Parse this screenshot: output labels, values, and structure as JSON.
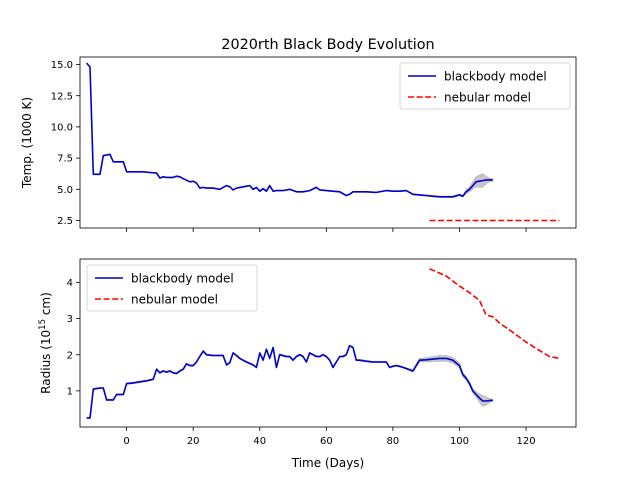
{
  "chart_data": [
    {
      "type": "line",
      "title": "2020rth Black Body Evolution",
      "xlabel": "",
      "ylabel": "Temp. (1000 K)",
      "xlim": [
        -14,
        135
      ],
      "ylim": [
        1.9,
        15.6
      ],
      "xticks": [
        0,
        20,
        40,
        60,
        80,
        100,
        120
      ],
      "yticks": [
        2.5,
        5.0,
        7.5,
        10.0,
        12.5,
        15.0
      ],
      "ytick_labels": [
        "2.5",
        "5.0",
        "7.5",
        "10.0",
        "12.5",
        "15.0"
      ],
      "legend_position": "upper right",
      "series": [
        {
          "name": "blackbody model",
          "color": "#0000cc",
          "style": "solid",
          "uncertainty_color": "#999999",
          "x": [
            -12,
            -11,
            -10,
            -8,
            -7,
            -5,
            -4,
            -3,
            -1,
            0,
            1,
            3,
            5,
            7,
            9,
            10,
            11,
            12,
            14,
            15,
            16,
            17,
            19,
            20,
            21,
            22,
            23,
            24,
            26,
            28,
            30,
            31,
            32,
            33,
            35,
            37,
            38,
            39,
            40,
            41,
            42,
            43,
            44,
            45,
            47,
            49,
            51,
            53,
            55,
            57,
            58,
            60,
            62,
            64,
            66,
            67,
            68,
            70,
            72,
            75,
            78,
            80,
            81,
            82,
            84,
            86,
            88,
            90,
            92,
            94,
            96,
            98,
            100,
            101,
            102,
            103,
            104,
            105,
            106,
            107,
            108,
            109,
            110
          ],
          "y": [
            15.1,
            14.8,
            6.2,
            6.2,
            7.7,
            7.8,
            7.2,
            7.2,
            7.2,
            6.4,
            6.4,
            6.4,
            6.4,
            6.35,
            6.3,
            5.9,
            6.0,
            5.95,
            5.95,
            6.05,
            6.0,
            5.85,
            5.6,
            5.65,
            5.5,
            5.1,
            5.15,
            5.1,
            5.1,
            5.0,
            5.3,
            5.2,
            4.95,
            5.1,
            5.2,
            5.3,
            5.0,
            5.15,
            4.85,
            5.05,
            4.85,
            5.3,
            4.85,
            4.9,
            4.9,
            5.0,
            4.8,
            4.8,
            4.9,
            5.15,
            4.95,
            4.9,
            4.85,
            4.8,
            4.5,
            4.6,
            4.8,
            4.8,
            4.8,
            4.75,
            4.9,
            4.85,
            4.85,
            4.85,
            4.9,
            4.6,
            4.55,
            4.5,
            4.45,
            4.4,
            4.4,
            4.4,
            4.55,
            4.45,
            4.8,
            5.0,
            5.3,
            5.6,
            5.65,
            5.7,
            5.75,
            5.75,
            5.75
          ],
          "err": [
            0.02,
            0.02,
            0.02,
            0.02,
            0.05,
            0.05,
            0.04,
            0.04,
            0.04,
            0.03,
            0.03,
            0.03,
            0.03,
            0.03,
            0.03,
            0.03,
            0.03,
            0.03,
            0.03,
            0.03,
            0.03,
            0.03,
            0.03,
            0.03,
            0.03,
            0.03,
            0.03,
            0.03,
            0.03,
            0.03,
            0.03,
            0.03,
            0.03,
            0.03,
            0.03,
            0.03,
            0.03,
            0.03,
            0.03,
            0.03,
            0.03,
            0.03,
            0.03,
            0.03,
            0.03,
            0.03,
            0.03,
            0.03,
            0.03,
            0.03,
            0.03,
            0.03,
            0.03,
            0.03,
            0.03,
            0.03,
            0.03,
            0.03,
            0.03,
            0.03,
            0.03,
            0.03,
            0.03,
            0.03,
            0.03,
            0.05,
            0.05,
            0.05,
            0.05,
            0.05,
            0.06,
            0.06,
            0.08,
            0.08,
            0.15,
            0.2,
            0.3,
            0.4,
            0.5,
            0.55,
            0.3,
            0.15,
            0.1
          ]
        },
        {
          "name": "nebular model",
          "color": "#ff0000",
          "style": "dashed",
          "x": [
            91,
            130
          ],
          "y": [
            2.5,
            2.5
          ]
        }
      ]
    },
    {
      "type": "line",
      "title": "",
      "xlabel": "Time (Days)",
      "ylabel_pre": "Radius (10",
      "ylabel_sup": "15",
      "ylabel_post": " cm)",
      "xlim": [
        -14,
        135
      ],
      "ylim": [
        0.0,
        4.65
      ],
      "xticks": [
        0,
        20,
        40,
        60,
        80,
        100,
        120
      ],
      "xtick_labels": [
        "0",
        "20",
        "40",
        "60",
        "80",
        "100",
        "120"
      ],
      "yticks": [
        1,
        2,
        3,
        4
      ],
      "ytick_labels": [
        "1",
        "2",
        "3",
        "4"
      ],
      "legend_position": "upper left",
      "series": [
        {
          "name": "blackbody model",
          "color": "#0000cc",
          "style": "solid",
          "uncertainty_color": "#999999",
          "x": [
            -12,
            -11,
            -10,
            -8,
            -7,
            -6,
            -5,
            -4,
            -3,
            -1,
            0,
            2,
            4,
            6,
            8,
            9,
            10,
            11,
            12,
            13,
            14,
            15,
            16,
            17,
            18,
            19,
            20,
            21,
            22,
            23,
            24,
            26,
            28,
            29,
            30,
            31,
            32,
            33,
            34,
            36,
            38,
            39,
            40,
            41,
            42,
            43,
            44,
            45,
            46,
            48,
            49,
            50,
            51,
            52,
            53,
            54,
            55,
            56,
            57,
            58,
            59,
            60,
            61,
            62,
            63,
            64,
            65,
            66,
            67,
            68,
            69,
            70,
            72,
            74,
            76,
            78,
            79,
            80,
            81,
            82,
            84,
            86,
            88,
            90,
            92,
            94,
            96,
            98,
            100,
            101,
            102,
            103,
            104,
            105,
            106,
            107,
            108,
            109,
            110
          ],
          "y": [
            0.25,
            0.25,
            1.05,
            1.08,
            1.08,
            0.75,
            0.75,
            0.75,
            0.9,
            0.9,
            1.2,
            1.22,
            1.25,
            1.28,
            1.32,
            1.6,
            1.5,
            1.55,
            1.52,
            1.55,
            1.5,
            1.48,
            1.55,
            1.6,
            1.75,
            1.7,
            1.7,
            1.8,
            1.95,
            2.1,
            2.0,
            1.98,
            1.98,
            1.98,
            1.72,
            1.78,
            2.05,
            1.98,
            1.9,
            1.8,
            1.72,
            1.65,
            2.05,
            1.85,
            2.15,
            1.9,
            2.2,
            1.65,
            2.0,
            1.95,
            1.95,
            1.85,
            1.95,
            2.0,
            1.95,
            1.8,
            2.05,
            2.0,
            1.95,
            1.95,
            2.0,
            1.95,
            1.85,
            1.65,
            1.8,
            1.95,
            1.95,
            2.0,
            2.25,
            2.2,
            1.85,
            1.85,
            1.82,
            1.8,
            1.8,
            1.8,
            1.65,
            1.68,
            1.7,
            1.68,
            1.62,
            1.55,
            1.85,
            1.86,
            1.88,
            1.9,
            1.9,
            1.85,
            1.7,
            1.45,
            1.35,
            1.2,
            1.0,
            0.9,
            0.8,
            0.72,
            0.72,
            0.73,
            0.74
          ],
          "err": [
            0.02,
            0.02,
            0.02,
            0.02,
            0.02,
            0.02,
            0.02,
            0.02,
            0.02,
            0.02,
            0.02,
            0.02,
            0.02,
            0.02,
            0.02,
            0.02,
            0.02,
            0.02,
            0.02,
            0.02,
            0.02,
            0.02,
            0.02,
            0.02,
            0.02,
            0.02,
            0.02,
            0.02,
            0.02,
            0.02,
            0.02,
            0.02,
            0.02,
            0.02,
            0.02,
            0.02,
            0.02,
            0.02,
            0.02,
            0.02,
            0.02,
            0.02,
            0.02,
            0.02,
            0.02,
            0.02,
            0.02,
            0.02,
            0.02,
            0.02,
            0.02,
            0.02,
            0.02,
            0.02,
            0.02,
            0.02,
            0.02,
            0.02,
            0.02,
            0.02,
            0.02,
            0.02,
            0.02,
            0.02,
            0.02,
            0.02,
            0.02,
            0.02,
            0.02,
            0.02,
            0.02,
            0.02,
            0.02,
            0.02,
            0.02,
            0.02,
            0.02,
            0.02,
            0.02,
            0.02,
            0.02,
            0.04,
            0.05,
            0.06,
            0.07,
            0.08,
            0.08,
            0.08,
            0.07,
            0.06,
            0.05,
            0.05,
            0.06,
            0.08,
            0.12,
            0.15,
            0.12,
            0.06,
            0.03
          ]
        },
        {
          "name": "nebular model",
          "color": "#ff0000",
          "style": "dashed",
          "x": [
            91,
            96,
            100,
            103,
            106,
            107,
            108,
            110,
            112,
            116,
            120,
            124,
            127,
            130
          ],
          "y": [
            4.38,
            4.18,
            3.9,
            3.72,
            3.5,
            3.3,
            3.1,
            3.05,
            2.88,
            2.62,
            2.35,
            2.12,
            1.95,
            1.9
          ]
        }
      ]
    }
  ]
}
